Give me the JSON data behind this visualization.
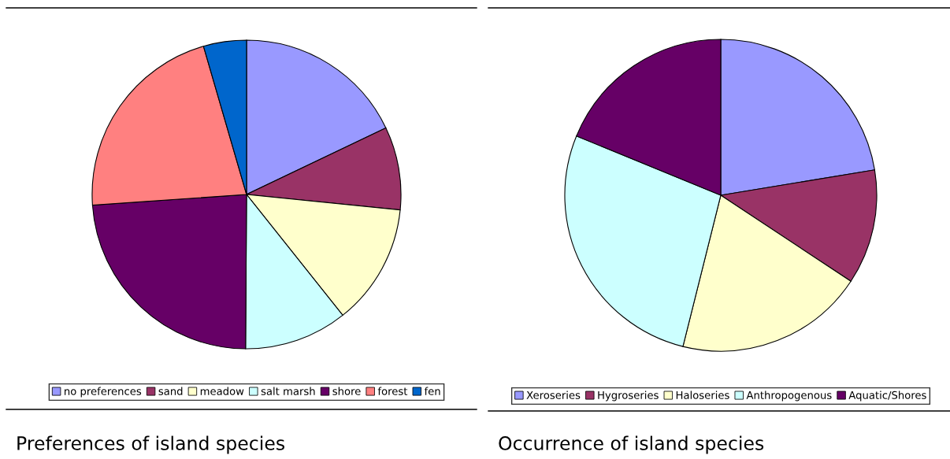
{
  "chart_data": [
    {
      "type": "pie",
      "title": "Preferences of island species",
      "legend": "bottom",
      "categories": [
        "no preferences",
        "sand",
        "meadow",
        "salt marsh",
        "shore",
        "forest",
        "fen"
      ],
      "values": [
        17.9,
        8.7,
        12.7,
        10.8,
        23.8,
        21.6,
        4.5
      ],
      "colors": [
        "#9999ff",
        "#993366",
        "#ffffcc",
        "#ccffff",
        "#660066",
        "#ff8080",
        "#0066cc"
      ]
    },
    {
      "type": "pie",
      "title": "Occurrence of island species",
      "legend": "bottom",
      "categories": [
        "Xeroseries",
        "Hygroseries",
        "Haloseries",
        "Anthropogenous",
        "Aquatic/Shores"
      ],
      "values": [
        22.4,
        11.9,
        19.6,
        27.3,
        18.8
      ],
      "colors": [
        "#9999ff",
        "#993366",
        "#ffffcc",
        "#ccffff",
        "#660066"
      ]
    }
  ]
}
